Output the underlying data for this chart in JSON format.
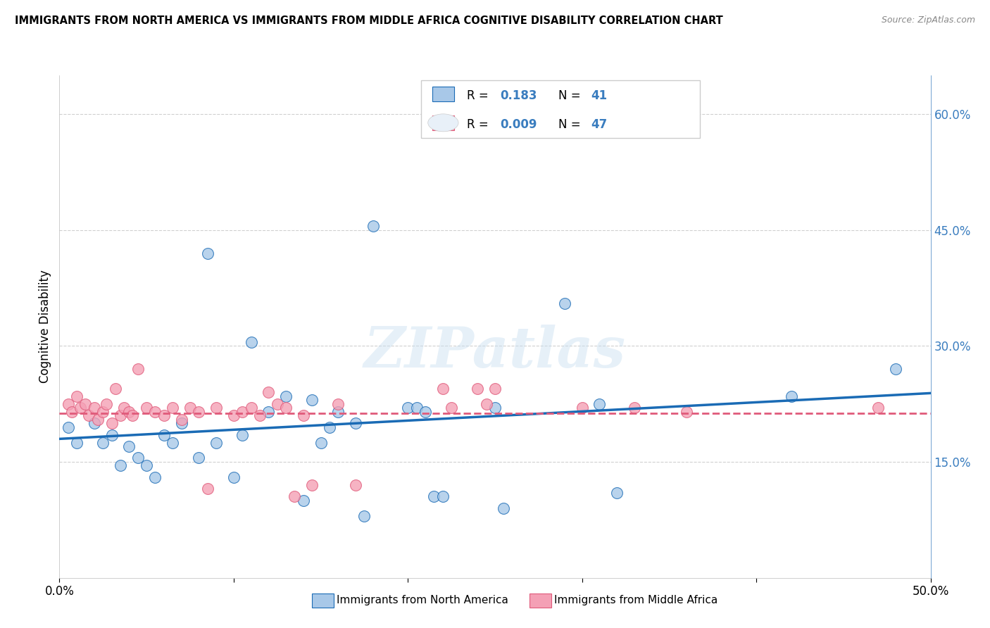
{
  "title": "IMMIGRANTS FROM NORTH AMERICA VS IMMIGRANTS FROM MIDDLE AFRICA COGNITIVE DISABILITY CORRELATION CHART",
  "source": "Source: ZipAtlas.com",
  "ylabel": "Cognitive Disability",
  "xlim": [
    0.0,
    0.5
  ],
  "ylim": [
    0.0,
    0.65
  ],
  "yticks_right": [
    0.15,
    0.3,
    0.45,
    0.6
  ],
  "ytick_labels_right": [
    "15.0%",
    "30.0%",
    "45.0%",
    "60.0%"
  ],
  "xtick_vals": [
    0.0,
    0.1,
    0.2,
    0.3,
    0.4,
    0.5
  ],
  "xtick_labels": [
    "0.0%",
    "",
    "",
    "",
    "",
    "50.0%"
  ],
  "color_blue": "#a8c8e8",
  "color_pink": "#f4a0b5",
  "line_blue": "#1a6bb5",
  "line_pink": "#e05a7a",
  "legend_R_blue": "0.183",
  "legend_N_blue": "41",
  "legend_R_pink": "0.009",
  "legend_N_pink": "47",
  "north_america_x": [
    0.005,
    0.01,
    0.02,
    0.025,
    0.03,
    0.035,
    0.04,
    0.045,
    0.05,
    0.055,
    0.06,
    0.065,
    0.07,
    0.08,
    0.085,
    0.09,
    0.1,
    0.105,
    0.11,
    0.12,
    0.13,
    0.14,
    0.145,
    0.15,
    0.155,
    0.16,
    0.17,
    0.175,
    0.18,
    0.2,
    0.205,
    0.21,
    0.215,
    0.22,
    0.25,
    0.255,
    0.29,
    0.31,
    0.32,
    0.42,
    0.48
  ],
  "north_america_y": [
    0.195,
    0.175,
    0.2,
    0.175,
    0.185,
    0.145,
    0.17,
    0.155,
    0.145,
    0.13,
    0.185,
    0.175,
    0.2,
    0.155,
    0.42,
    0.175,
    0.13,
    0.185,
    0.305,
    0.215,
    0.235,
    0.1,
    0.23,
    0.175,
    0.195,
    0.215,
    0.2,
    0.08,
    0.455,
    0.22,
    0.22,
    0.215,
    0.105,
    0.105,
    0.22,
    0.09,
    0.355,
    0.225,
    0.11,
    0.235,
    0.27
  ],
  "middle_africa_x": [
    0.005,
    0.007,
    0.01,
    0.012,
    0.015,
    0.017,
    0.02,
    0.022,
    0.025,
    0.027,
    0.03,
    0.032,
    0.035,
    0.037,
    0.04,
    0.042,
    0.045,
    0.05,
    0.055,
    0.06,
    0.065,
    0.07,
    0.075,
    0.08,
    0.085,
    0.09,
    0.1,
    0.105,
    0.11,
    0.115,
    0.12,
    0.125,
    0.13,
    0.135,
    0.14,
    0.145,
    0.16,
    0.17,
    0.22,
    0.225,
    0.24,
    0.245,
    0.25,
    0.3,
    0.33,
    0.36,
    0.47
  ],
  "middle_africa_y": [
    0.225,
    0.215,
    0.235,
    0.22,
    0.225,
    0.21,
    0.22,
    0.205,
    0.215,
    0.225,
    0.2,
    0.245,
    0.21,
    0.22,
    0.215,
    0.21,
    0.27,
    0.22,
    0.215,
    0.21,
    0.22,
    0.205,
    0.22,
    0.215,
    0.115,
    0.22,
    0.21,
    0.215,
    0.22,
    0.21,
    0.24,
    0.225,
    0.22,
    0.105,
    0.21,
    0.12,
    0.225,
    0.12,
    0.245,
    0.22,
    0.245,
    0.225,
    0.245,
    0.22,
    0.22,
    0.215,
    0.22
  ],
  "watermark": "ZIPatlas",
  "background_color": "#ffffff",
  "grid_color": "#d0d0d0",
  "legend_box_blue": "#a8c8e8",
  "legend_box_pink": "#f4a0b5",
  "text_blue": "#3a7dbf",
  "text_black": "#333333"
}
